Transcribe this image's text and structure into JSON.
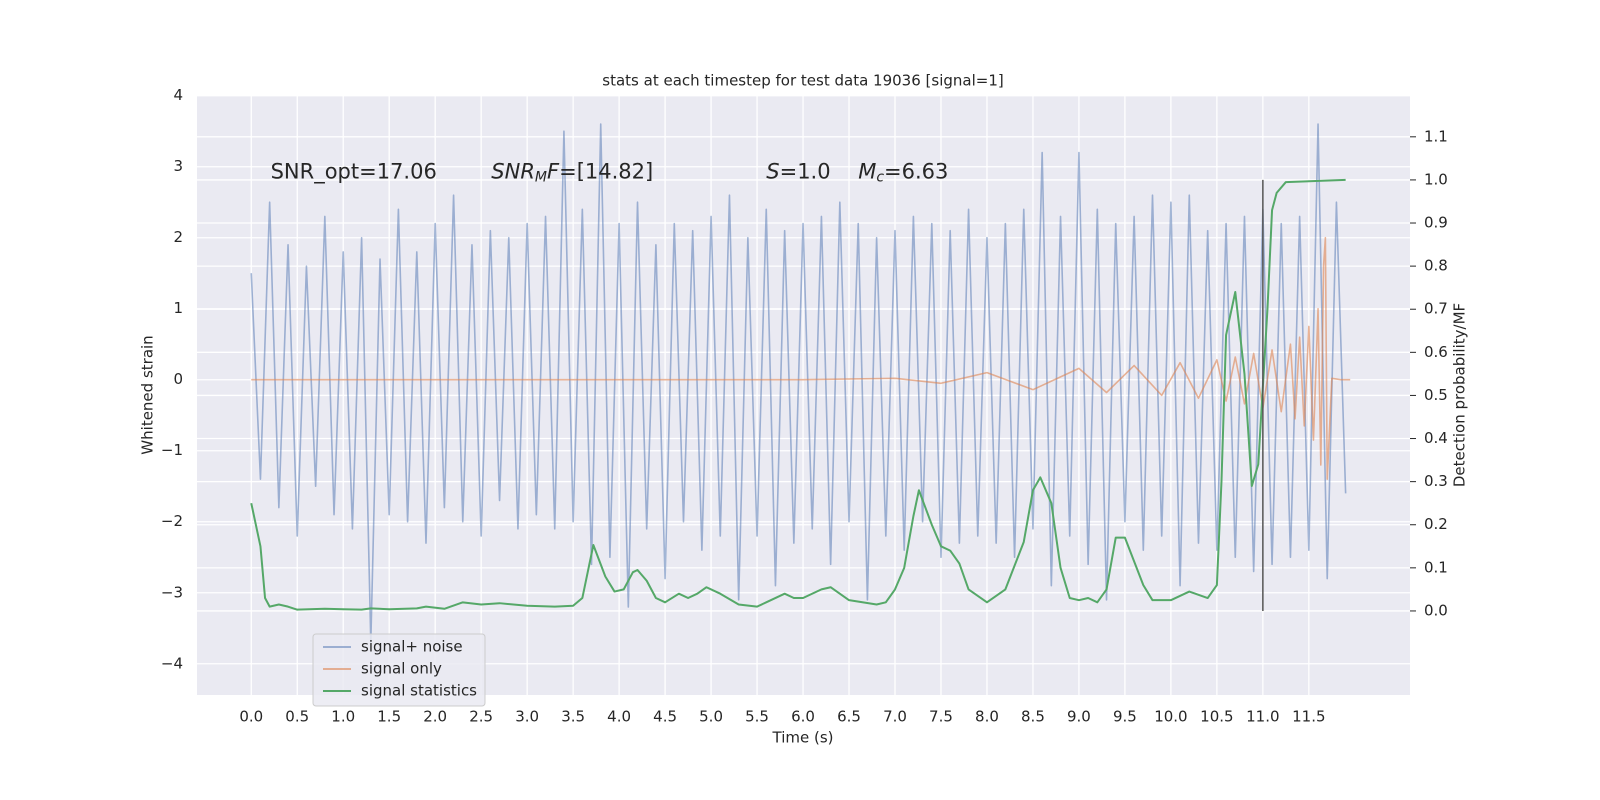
{
  "chart_data": {
    "type": "line",
    "title": "stats at each timestep for test data 19036 [signal=1]",
    "x_label": "Time (s)",
    "y_label": "Whitened strain",
    "y2_label": "Detection probability/MF",
    "xlim": [
      -0.59,
      12.6
    ],
    "ylim": [
      -4.44,
      4.01
    ],
    "y2lim": [
      -0.195,
      1.197
    ],
    "xticks": [
      {
        "value": 0,
        "label": "0.0"
      },
      0.5,
      {
        "value": 1,
        "label": "1.0"
      },
      1.5,
      {
        "value": 2,
        "label": "2.0"
      },
      2.5,
      {
        "value": 3,
        "label": "3.0"
      },
      3.5,
      {
        "value": 4,
        "label": "4.0"
      },
      4.5,
      {
        "value": 5,
        "label": "5.0"
      },
      5.5,
      {
        "value": 6,
        "label": "6.0"
      },
      6.5,
      {
        "value": 7,
        "label": "7.0"
      },
      7.5,
      {
        "value": 8,
        "label": "8.0"
      },
      8.5,
      {
        "value": 9,
        "label": "9.0"
      },
      9.5,
      {
        "value": 10,
        "label": "10.0"
      },
      10.5,
      {
        "value": 11,
        "label": "11.0"
      },
      11.5
    ],
    "yticks": [
      {
        "value": -4,
        "label": "−4"
      },
      {
        "value": -3,
        "label": "−3"
      },
      {
        "value": -2,
        "label": "−2"
      },
      {
        "value": -1,
        "label": "−1"
      },
      0,
      1,
      2,
      3,
      4
    ],
    "y2ticks": [
      {
        "value": 0,
        "label": "0.0"
      },
      0.1,
      0.2,
      0.3,
      0.4,
      0.5,
      0.6,
      0.7,
      0.8,
      0.9,
      {
        "value": 1,
        "label": "1.0"
      },
      1.1
    ],
    "grid": true,
    "legend_position": "lower left",
    "series": [
      {
        "name": "signal+ noise",
        "color": "#4c72b0",
        "alpha": 0.5,
        "x": [
          0,
          0.1,
          0.2,
          0.3,
          0.4,
          0.5,
          0.6,
          0.7,
          0.8,
          0.9,
          1,
          1.1,
          1.2,
          1.3,
          1.4,
          1.5,
          1.6,
          1.7,
          1.8,
          1.9,
          2,
          2.1,
          2.2,
          2.3,
          2.4,
          2.5,
          2.6,
          2.7,
          2.8,
          2.9,
          3,
          3.1,
          3.2,
          3.3,
          3.4,
          3.5,
          3.6,
          3.7,
          3.8,
          3.9,
          4,
          4.1,
          4.2,
          4.3,
          4.4,
          4.5,
          4.6,
          4.7,
          4.8,
          4.9,
          5,
          5.1,
          5.2,
          5.3,
          5.4,
          5.5,
          5.6,
          5.7,
          5.8,
          5.9,
          6,
          6.1,
          6.2,
          6.3,
          6.4,
          6.5,
          6.6,
          6.7,
          6.8,
          6.9,
          7,
          7.1,
          7.2,
          7.3,
          7.4,
          7.5,
          7.6,
          7.7,
          7.8,
          7.9,
          8,
          8.1,
          8.2,
          8.3,
          8.4,
          8.5,
          8.6,
          8.7,
          8.8,
          8.9,
          9,
          9.1,
          9.2,
          9.3,
          9.4,
          9.5,
          9.6,
          9.7,
          9.8,
          9.9,
          10,
          10.1,
          10.2,
          10.3,
          10.4,
          10.5,
          10.6,
          10.7,
          10.8,
          10.9,
          11,
          11.1,
          11.2,
          11.3,
          11.4,
          11.5,
          11.6,
          11.7,
          11.8,
          11.9
        ],
        "values": [
          1.5,
          -1.4,
          2.5,
          -1.8,
          1.9,
          -2.2,
          1.6,
          -1.5,
          2.3,
          -1.9,
          1.8,
          -2.1,
          2.0,
          -3.7,
          1.7,
          -1.9,
          2.4,
          -2.0,
          1.8,
          -2.3,
          2.2,
          -1.8,
          2.6,
          -2.0,
          1.9,
          -2.2,
          2.1,
          -1.7,
          2.0,
          -2.1,
          2.2,
          -1.9,
          2.3,
          -2.1,
          3.5,
          -2.0,
          2.4,
          -2.6,
          3.6,
          -2.5,
          2.2,
          -3.2,
          2.5,
          -2.1,
          1.9,
          -2.8,
          2.2,
          -2.0,
          2.1,
          -2.4,
          2.3,
          -2.2,
          2.6,
          -3.1,
          2.0,
          -2.2,
          2.4,
          -2.9,
          2.1,
          -2.3,
          2.2,
          -2.1,
          2.3,
          -2.6,
          2.5,
          -2.0,
          2.2,
          -3.1,
          2.0,
          -2.2,
          2.1,
          -2.4,
          2.3,
          -2.0,
          2.2,
          -2.5,
          2.1,
          -2.3,
          2.4,
          -2.2,
          2.0,
          -2.3,
          2.2,
          -2.5,
          2.4,
          -2.1,
          3.2,
          -2.9,
          2.3,
          -2.2,
          3.2,
          -2.6,
          2.4,
          -3.1,
          2.2,
          -2.0,
          2.3,
          -2.4,
          2.6,
          -2.2,
          2.5,
          -2.9,
          2.6,
          -2.3,
          2.1,
          -2.4,
          2.2,
          -2.5,
          2.3,
          -2.7,
          2.4,
          -2.6,
          2.2,
          -2.5,
          2.3,
          -2.4,
          3.6,
          -2.8,
          2.5,
          -1.6
        ]
      },
      {
        "name": "signal only",
        "color": "#dd8452",
        "alpha": 0.6,
        "x": [
          0,
          1,
          2,
          3,
          4,
          5,
          6,
          7,
          7.5,
          8,
          8.5,
          9,
          9.3,
          9.6,
          9.9,
          10.1,
          10.3,
          10.5,
          10.6,
          10.7,
          10.8,
          10.9,
          11.0,
          11.1,
          11.2,
          11.3,
          11.35,
          11.4,
          11.45,
          11.5,
          11.55,
          11.6,
          11.63,
          11.66,
          11.68,
          11.7,
          11.75,
          11.85,
          11.95
        ],
        "values": [
          0,
          0,
          0,
          0,
          0,
          0,
          0,
          0.02,
          -0.05,
          0.1,
          -0.14,
          0.16,
          -0.18,
          0.2,
          -0.22,
          0.24,
          -0.26,
          0.28,
          -0.3,
          0.32,
          -0.34,
          0.37,
          -0.4,
          0.42,
          -0.45,
          0.5,
          -0.55,
          0.6,
          -0.65,
          0.75,
          -0.85,
          1.0,
          -1.2,
          1.6,
          2.0,
          -1.4,
          0.02,
          0,
          0
        ]
      },
      {
        "name": "signal statistics",
        "color": "#55a868",
        "alpha": 1,
        "axis": "y2",
        "x": [
          0,
          0.1,
          0.15,
          0.2,
          0.3,
          0.4,
          0.5,
          0.8,
          1.0,
          1.2,
          1.3,
          1.5,
          1.8,
          1.9,
          2.1,
          2.3,
          2.5,
          2.7,
          3.0,
          3.3,
          3.5,
          3.6,
          3.72,
          3.85,
          3.95,
          4.05,
          4.15,
          4.2,
          4.3,
          4.4,
          4.5,
          4.65,
          4.75,
          4.85,
          4.95,
          5.1,
          5.3,
          5.5,
          5.6,
          5.8,
          5.9,
          6.0,
          6.2,
          6.3,
          6.5,
          6.8,
          6.9,
          7.0,
          7.1,
          7.2,
          7.26,
          7.4,
          7.5,
          7.6,
          7.7,
          7.8,
          8.0,
          8.2,
          8.4,
          8.5,
          8.58,
          8.7,
          8.8,
          8.9,
          9.0,
          9.1,
          9.2,
          9.3,
          9.4,
          9.5,
          9.7,
          9.8,
          10.0,
          10.2,
          10.4,
          10.5,
          10.55,
          10.6,
          10.7,
          10.8,
          10.88,
          10.95,
          11.05,
          11.1,
          11.15,
          11.25,
          11.9
        ],
        "values": [
          0.25,
          0.15,
          0.03,
          0.01,
          0.015,
          0.01,
          0.003,
          0.005,
          0.004,
          0.003,
          0.006,
          0.004,
          0.006,
          0.01,
          0.005,
          0.02,
          0.015,
          0.018,
          0.012,
          0.01,
          0.012,
          0.03,
          0.153,
          0.08,
          0.045,
          0.05,
          0.09,
          0.095,
          0.07,
          0.03,
          0.02,
          0.04,
          0.03,
          0.04,
          0.055,
          0.04,
          0.015,
          0.01,
          0.02,
          0.04,
          0.03,
          0.03,
          0.05,
          0.055,
          0.025,
          0.015,
          0.02,
          0.05,
          0.1,
          0.22,
          0.28,
          0.2,
          0.15,
          0.14,
          0.11,
          0.05,
          0.02,
          0.05,
          0.16,
          0.28,
          0.31,
          0.25,
          0.1,
          0.03,
          0.025,
          0.03,
          0.02,
          0.05,
          0.17,
          0.17,
          0.06,
          0.025,
          0.025,
          0.045,
          0.03,
          0.06,
          0.3,
          0.64,
          0.74,
          0.55,
          0.29,
          0.34,
          0.7,
          0.93,
          0.97,
          0.995,
          1.0
        ]
      }
    ],
    "vertical_line": {
      "x": 11,
      "ymin": 0,
      "ymax": 1,
      "axis": "y2",
      "color": "#555555"
    },
    "annotations": [
      {
        "parts": [
          {
            "text": "SNR_opt=17.06"
          }
        ]
      },
      {
        "parts": [
          {
            "text": "SNR",
            "style": "italic"
          },
          {
            "text": "M",
            "style": "italic-sub"
          },
          {
            "text": "F",
            "style": "italic"
          },
          {
            "text": "=[14.82]"
          }
        ]
      },
      {
        "parts": [
          {
            "text": "S",
            "style": "italic"
          },
          {
            "text": "=1.0"
          }
        ]
      },
      {
        "parts": [
          {
            "text": "M",
            "style": "italic"
          },
          {
            "text": "c",
            "style": "italic-sub"
          },
          {
            "text": "=6.63"
          }
        ]
      }
    ]
  }
}
